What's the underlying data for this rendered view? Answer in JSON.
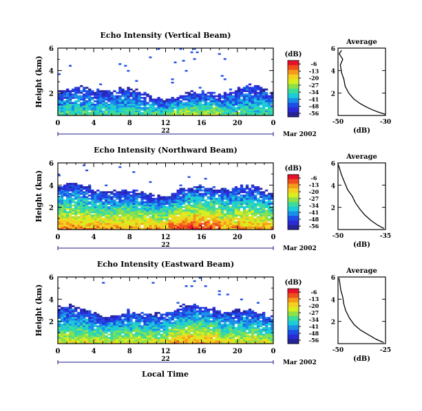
{
  "figure": {
    "xlabel": "Local Time"
  },
  "colorbar": {
    "unit": "(dB)",
    "ticks": [
      "-6",
      "-13",
      "-20",
      "-27",
      "-34",
      "-41",
      "-48",
      "-56"
    ],
    "colors": [
      "#e8102a",
      "#f0501e",
      "#f59a1a",
      "#f5d020",
      "#d8ee1e",
      "#8ee04a",
      "#3cdc9a",
      "#1ccbd8",
      "#1a8ee8",
      "#1d4fe6",
      "#2a2ad6",
      "#242498"
    ]
  },
  "chart_data": [
    {
      "type": "heatmap",
      "title": "Echo Intensity (Vertical Beam)",
      "ylabel": "Height (km)",
      "yticks": [
        "2",
        "4",
        "6"
      ],
      "xticks": [
        "0",
        "4",
        "8",
        "12",
        "16",
        "20",
        "0"
      ],
      "date_label": "22",
      "month_label": "Mar 2002",
      "ylim": [
        0,
        6
      ],
      "xlim": [
        0,
        24
      ],
      "profile": {
        "title": "Average",
        "xlabel": "(dB)",
        "xticks": [
          "-50",
          "-30"
        ],
        "yticks": [
          "2",
          "4",
          "6"
        ],
        "xlim": [
          -50,
          -30
        ],
        "points": [
          [
            -30.0,
            0.1
          ],
          [
            -33.0,
            0.3
          ],
          [
            -35.5,
            0.5
          ],
          [
            -38.5,
            0.8
          ],
          [
            -41.0,
            1.1
          ],
          [
            -43.5,
            1.5
          ],
          [
            -45.5,
            2.0
          ],
          [
            -47.0,
            2.6
          ],
          [
            -47.5,
            3.2
          ],
          [
            -48.5,
            3.8
          ],
          [
            -49.0,
            4.5
          ],
          [
            -48.0,
            5.0
          ],
          [
            -49.5,
            5.5
          ],
          [
            -48.5,
            5.8
          ]
        ]
      }
    },
    {
      "type": "heatmap",
      "title": "Echo Intensity (Northward Beam)",
      "ylabel": "Height (km)",
      "yticks": [
        "2",
        "4",
        "6"
      ],
      "xticks": [
        "0",
        "4",
        "8",
        "12",
        "16",
        "20",
        "0"
      ],
      "date_label": "22",
      "month_label": "Mar 2002",
      "ylim": [
        0,
        6
      ],
      "xlim": [
        0,
        24
      ],
      "profile": {
        "title": "Average",
        "xlabel": "(dB)",
        "xticks": [
          "-50",
          "-35"
        ],
        "yticks": [
          "2",
          "4",
          "6"
        ],
        "xlim": [
          -50,
          -35
        ],
        "points": [
          [
            -35.5,
            0.1
          ],
          [
            -37.5,
            0.4
          ],
          [
            -39.5,
            0.8
          ],
          [
            -41.5,
            1.3
          ],
          [
            -43.0,
            1.8
          ],
          [
            -44.5,
            2.4
          ],
          [
            -45.5,
            3.0
          ],
          [
            -47.0,
            3.6
          ],
          [
            -48.0,
            4.3
          ],
          [
            -49.0,
            5.0
          ],
          [
            -49.5,
            5.5
          ],
          [
            -50.0,
            5.9
          ]
        ]
      }
    },
    {
      "type": "heatmap",
      "title": "Echo Intensity (Eastward Beam)",
      "ylabel": "Height (km)",
      "yticks": [
        "2",
        "4",
        "6"
      ],
      "xticks": [
        "0",
        "4",
        "8",
        "12",
        "16",
        "20",
        "0"
      ],
      "date_label": "22",
      "month_label": "Mar 2002",
      "ylim": [
        0,
        6
      ],
      "xlim": [
        0,
        24
      ],
      "profile": {
        "title": "Average",
        "xlabel": "(dB)",
        "xticks": [
          "-50",
          "-25"
        ],
        "yticks": [
          "2",
          "4",
          "6"
        ],
        "xlim": [
          -50,
          -25
        ],
        "points": [
          [
            -26.0,
            0.1
          ],
          [
            -30.0,
            0.4
          ],
          [
            -34.0,
            0.8
          ],
          [
            -38.0,
            1.2
          ],
          [
            -41.5,
            1.7
          ],
          [
            -44.0,
            2.3
          ],
          [
            -46.0,
            3.0
          ],
          [
            -47.0,
            3.6
          ],
          [
            -47.5,
            4.2
          ],
          [
            -48.5,
            4.8
          ],
          [
            -49.0,
            5.4
          ],
          [
            -49.5,
            5.9
          ]
        ]
      }
    }
  ]
}
